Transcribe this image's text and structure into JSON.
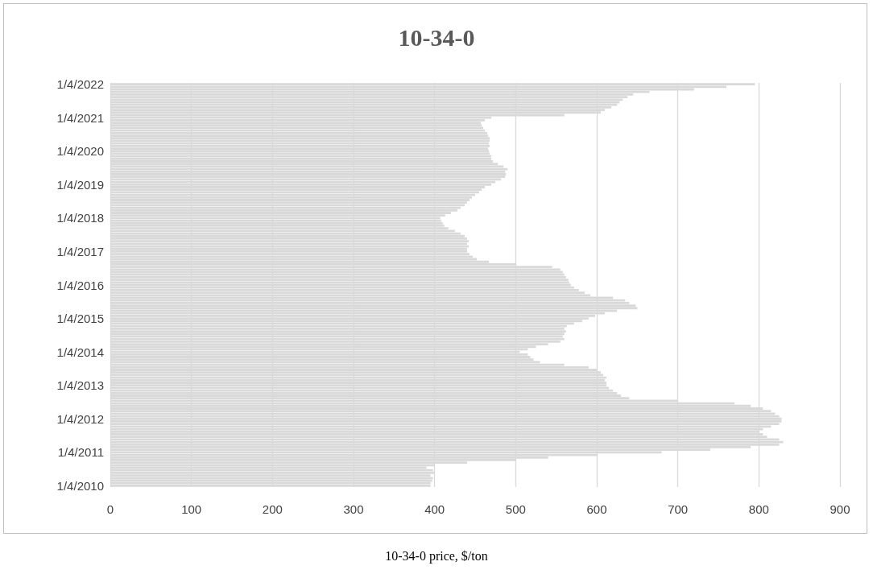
{
  "chart_data": {
    "type": "bar",
    "orientation": "horizontal",
    "title": "10-34-0",
    "xlabel": "10-34-0 price, $/ton",
    "categories": [
      "1/4/2022",
      null,
      null,
      null,
      null,
      null,
      null,
      null,
      null,
      null,
      null,
      null,
      null,
      "1/4/2021",
      null,
      null,
      null,
      null,
      null,
      null,
      null,
      null,
      null,
      null,
      null,
      null,
      "1/4/2020",
      null,
      null,
      null,
      null,
      null,
      null,
      null,
      null,
      null,
      null,
      null,
      null,
      "1/4/2019",
      null,
      null,
      null,
      null,
      null,
      null,
      null,
      null,
      null,
      null,
      null,
      null,
      "1/4/2018",
      null,
      null,
      null,
      null,
      null,
      null,
      null,
      null,
      null,
      null,
      null,
      null,
      "1/4/2017",
      null,
      null,
      null,
      null,
      null,
      null,
      null,
      null,
      null,
      null,
      null,
      null,
      "1/4/2016",
      null,
      null,
      null,
      null,
      null,
      null,
      null,
      null,
      null,
      null,
      null,
      null,
      "1/4/2015",
      null,
      null,
      null,
      null,
      null,
      null,
      null,
      null,
      null,
      null,
      null,
      null,
      "1/4/2014",
      null,
      null,
      null,
      null,
      null,
      null,
      null,
      null,
      null,
      null,
      null,
      null,
      "1/4/2013",
      null,
      null,
      null,
      null,
      null,
      null,
      null,
      null,
      null,
      null,
      null,
      null,
      "1/4/2012",
      null,
      null,
      null,
      null,
      null,
      null,
      null,
      null,
      null,
      null,
      null,
      null,
      "1/4/2011",
      null,
      null,
      null,
      null,
      null,
      null,
      null,
      null,
      null,
      null,
      null,
      null,
      "1/4/2010"
    ],
    "values": [
      795,
      760,
      720,
      665,
      645,
      638,
      632,
      628,
      625,
      618,
      610,
      605,
      560,
      470,
      462,
      457,
      458,
      460,
      462,
      465,
      466,
      468,
      468,
      467,
      468,
      466,
      467,
      468,
      470,
      470,
      472,
      478,
      485,
      490,
      487,
      488,
      487,
      482,
      475,
      470,
      462,
      458,
      455,
      450,
      446,
      443,
      440,
      437,
      432,
      428,
      420,
      413,
      407,
      408,
      410,
      412,
      417,
      425,
      432,
      437,
      440,
      442,
      440,
      442,
      440,
      440,
      443,
      447,
      452,
      467,
      500,
      545,
      555,
      558,
      560,
      562,
      565,
      566,
      568,
      572,
      578,
      585,
      592,
      620,
      635,
      640,
      648,
      650,
      625,
      610,
      598,
      590,
      582,
      572,
      563,
      560,
      562,
      560,
      558,
      560,
      555,
      540,
      525,
      515,
      505,
      515,
      518,
      522,
      530,
      560,
      590,
      600,
      605,
      608,
      612,
      610,
      612,
      612,
      615,
      620,
      625,
      630,
      640,
      700,
      770,
      790,
      805,
      815,
      820,
      825,
      828,
      828,
      825,
      815,
      805,
      800,
      805,
      810,
      825,
      830,
      825,
      790,
      740,
      680,
      600,
      540,
      500,
      440,
      400,
      390,
      398,
      400,
      395,
      398,
      397,
      395,
      395
    ],
    "color": "#d9d9d9",
    "xlim": [
      0,
      900
    ],
    "xticks": [
      0,
      100,
      200,
      300,
      400,
      500,
      600,
      700,
      800,
      900
    ],
    "grid": "x"
  }
}
